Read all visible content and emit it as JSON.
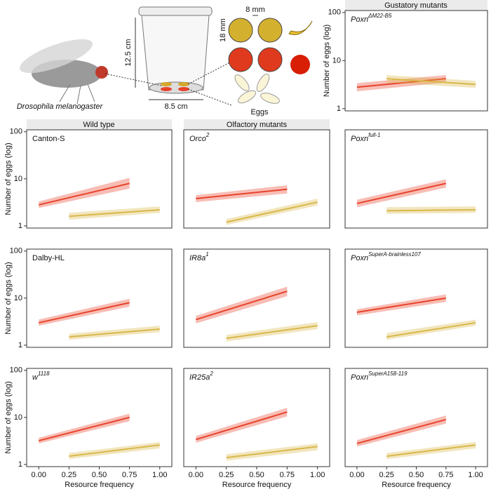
{
  "column_headers": [
    "Wild type",
    "Olfactory mutants",
    "Gustatory mutants"
  ],
  "illustration": {
    "species": "Drosophila melanogaster",
    "height": "12.5 cm",
    "width": "8.5 cm",
    "spacing": "8 mm",
    "diameter": "18 mm",
    "eggs": "Eggs"
  },
  "chart_data": [
    {
      "type": "line",
      "title": "Poxn",
      "title_sup": "ΔM22-B5",
      "italic": true,
      "ylabel": "Number of eggs (log)",
      "log": true,
      "xlim": [
        -0.1,
        1.1
      ],
      "ylim": [
        0.9,
        110
      ],
      "yticks": [
        1,
        10,
        100
      ],
      "series": [
        {
          "color": "#e8432a",
          "x": [
            0,
            0.75
          ],
          "values": [
            2.8,
            4.2
          ],
          "lower": [
            2.3,
            3.5
          ],
          "upper": [
            3.4,
            5.0
          ]
        },
        {
          "color": "#d9b84a",
          "x": [
            0.25,
            1
          ],
          "values": [
            4.2,
            3.2
          ],
          "lower": [
            3.5,
            2.7
          ],
          "upper": [
            5.0,
            3.8
          ]
        }
      ]
    },
    {
      "type": "line",
      "title": "Canton-S",
      "italic": false,
      "ylabel": "Number of eggs (log)",
      "log": true,
      "xlim": [
        -0.1,
        1.1
      ],
      "ylim": [
        0.9,
        110
      ],
      "yticks": [
        1,
        10,
        100
      ],
      "series": [
        {
          "color": "#e8432a",
          "x": [
            0,
            0.75
          ],
          "values": [
            2.8,
            8
          ],
          "lower": [
            2.4,
            6.2
          ],
          "upper": [
            3.3,
            10.5
          ]
        },
        {
          "color": "#d9b84a",
          "x": [
            0.25,
            1
          ],
          "values": [
            1.6,
            2.2
          ],
          "lower": [
            1.35,
            1.9
          ],
          "upper": [
            1.9,
            2.6
          ]
        }
      ]
    },
    {
      "type": "line",
      "title": "Orco",
      "title_sup": "2",
      "italic": true,
      "log": true,
      "xlim": [
        -0.1,
        1.1
      ],
      "ylim": [
        0.9,
        110
      ],
      "series": [
        {
          "color": "#e8432a",
          "x": [
            0,
            0.75
          ],
          "values": [
            3.8,
            6
          ],
          "lower": [
            3.2,
            4.9
          ],
          "upper": [
            4.5,
            7.3
          ]
        },
        {
          "color": "#d9b84a",
          "x": [
            0.25,
            1
          ],
          "values": [
            1.2,
            3.2
          ],
          "lower": [
            1.05,
            2.7
          ],
          "upper": [
            1.4,
            3.8
          ]
        }
      ]
    },
    {
      "type": "line",
      "title": "Poxn",
      "title_sup": "full-1",
      "italic": true,
      "log": true,
      "xlim": [
        -0.1,
        1.1
      ],
      "ylim": [
        0.9,
        110
      ],
      "series": [
        {
          "color": "#e8432a",
          "x": [
            0,
            0.75
          ],
          "values": [
            3,
            8
          ],
          "lower": [
            2.5,
            6.5
          ],
          "upper": [
            3.6,
            9.8
          ]
        },
        {
          "color": "#d9b84a",
          "x": [
            0.25,
            1
          ],
          "values": [
            2.1,
            2.2
          ],
          "lower": [
            1.8,
            1.9
          ],
          "upper": [
            2.5,
            2.6
          ]
        }
      ]
    },
    {
      "type": "line",
      "title": "Dalby-HL",
      "italic": false,
      "ylabel": "Number of eggs (log)",
      "log": true,
      "xlim": [
        -0.1,
        1.1
      ],
      "ylim": [
        0.9,
        110
      ],
      "yticks": [
        1,
        10,
        100
      ],
      "series": [
        {
          "color": "#e8432a",
          "x": [
            0,
            0.75
          ],
          "values": [
            3,
            8
          ],
          "lower": [
            2.6,
            6.6
          ],
          "upper": [
            3.5,
            9.7
          ]
        },
        {
          "color": "#d9b84a",
          "x": [
            0.25,
            1
          ],
          "values": [
            1.5,
            2.2
          ],
          "lower": [
            1.3,
            1.9
          ],
          "upper": [
            1.75,
            2.6
          ]
        }
      ]
    },
    {
      "type": "line",
      "title": "IR8a",
      "title_sup": "1",
      "italic": true,
      "log": true,
      "xlim": [
        -0.1,
        1.1
      ],
      "ylim": [
        0.9,
        110
      ],
      "series": [
        {
          "color": "#e8432a",
          "x": [
            0,
            0.75
          ],
          "values": [
            3.5,
            14
          ],
          "lower": [
            2.9,
            11
          ],
          "upper": [
            4.2,
            17.5
          ]
        },
        {
          "color": "#d9b84a",
          "x": [
            0.25,
            1
          ],
          "values": [
            1.4,
            2.6
          ],
          "lower": [
            1.2,
            2.2
          ],
          "upper": [
            1.65,
            3.1
          ]
        }
      ]
    },
    {
      "type": "line",
      "title": "Poxn",
      "title_sup": "SuperA-brainless107",
      "italic": true,
      "log": true,
      "xlim": [
        -0.1,
        1.1
      ],
      "ylim": [
        0.9,
        110
      ],
      "series": [
        {
          "color": "#e8432a",
          "x": [
            0,
            0.75
          ],
          "values": [
            5,
            10
          ],
          "lower": [
            4.3,
            8.3
          ],
          "upper": [
            5.8,
            12
          ]
        },
        {
          "color": "#d9b84a",
          "x": [
            0.25,
            1
          ],
          "values": [
            1.5,
            3
          ],
          "lower": [
            1.3,
            2.6
          ],
          "upper": [
            1.8,
            3.5
          ]
        }
      ]
    },
    {
      "type": "line",
      "title": "w",
      "title_sup": "1118",
      "italic": true,
      "ylabel": "Number of eggs (log)",
      "xlabel": "Resource frequency",
      "log": true,
      "xlim": [
        -0.1,
        1.1
      ],
      "ylim": [
        0.9,
        110
      ],
      "yticks": [
        1,
        10,
        100
      ],
      "xticks": [
        {
          "value": 0,
          "label": "0.00"
        },
        {
          "value": 0.25,
          "label": "0.25"
        },
        {
          "value": 0.5,
          "label": "0.50"
        },
        {
          "value": 0.75,
          "label": "0.75"
        },
        {
          "value": 1,
          "label": "1.00"
        }
      ],
      "series": [
        {
          "color": "#e8432a",
          "x": [
            0,
            0.75
          ],
          "values": [
            3.2,
            10
          ],
          "lower": [
            2.8,
            8.3
          ],
          "upper": [
            3.7,
            12
          ]
        },
        {
          "color": "#d9b84a",
          "x": [
            0.25,
            1
          ],
          "values": [
            1.5,
            2.6
          ],
          "lower": [
            1.3,
            2.2
          ],
          "upper": [
            1.75,
            3.0
          ]
        }
      ]
    },
    {
      "type": "line",
      "title": "IR25a",
      "title_sup": "2",
      "italic": true,
      "xlabel": "Resource frequency",
      "log": true,
      "xlim": [
        -0.1,
        1.1
      ],
      "ylim": [
        0.9,
        110
      ],
      "xticks": [
        {
          "value": 0,
          "label": "0.00"
        },
        {
          "value": 0.25,
          "label": "0.25"
        },
        {
          "value": 0.5,
          "label": "0.50"
        },
        {
          "value": 0.75,
          "label": "0.75"
        },
        {
          "value": 1,
          "label": "1.00"
        }
      ],
      "series": [
        {
          "color": "#e8432a",
          "x": [
            0,
            0.75
          ],
          "values": [
            3.4,
            13
          ],
          "lower": [
            2.9,
            10.5
          ],
          "upper": [
            4.0,
            16
          ]
        },
        {
          "color": "#d9b84a",
          "x": [
            0.25,
            1
          ],
          "values": [
            1.4,
            2.4
          ],
          "lower": [
            1.2,
            2.0
          ],
          "upper": [
            1.65,
            2.8
          ]
        }
      ]
    },
    {
      "type": "line",
      "title": "Poxn",
      "title_sup": "SuperA158-119",
      "italic": true,
      "xlabel": "Resource frequency",
      "log": true,
      "xlim": [
        -0.1,
        1.1
      ],
      "ylim": [
        0.9,
        110
      ],
      "xticks": [
        {
          "value": 0,
          "label": "0.00"
        },
        {
          "value": 0.25,
          "label": "0.25"
        },
        {
          "value": 0.5,
          "label": "0.50"
        },
        {
          "value": 0.75,
          "label": "0.75"
        },
        {
          "value": 1,
          "label": "1.00"
        }
      ],
      "series": [
        {
          "color": "#e8432a",
          "x": [
            0,
            0.75
          ],
          "values": [
            2.8,
            9
          ],
          "lower": [
            2.4,
            7.4
          ],
          "upper": [
            3.3,
            11
          ]
        },
        {
          "color": "#d9b84a",
          "x": [
            0.25,
            1
          ],
          "values": [
            1.5,
            2.6
          ],
          "lower": [
            1.3,
            2.2
          ],
          "upper": [
            1.75,
            3.0
          ]
        }
      ]
    }
  ]
}
